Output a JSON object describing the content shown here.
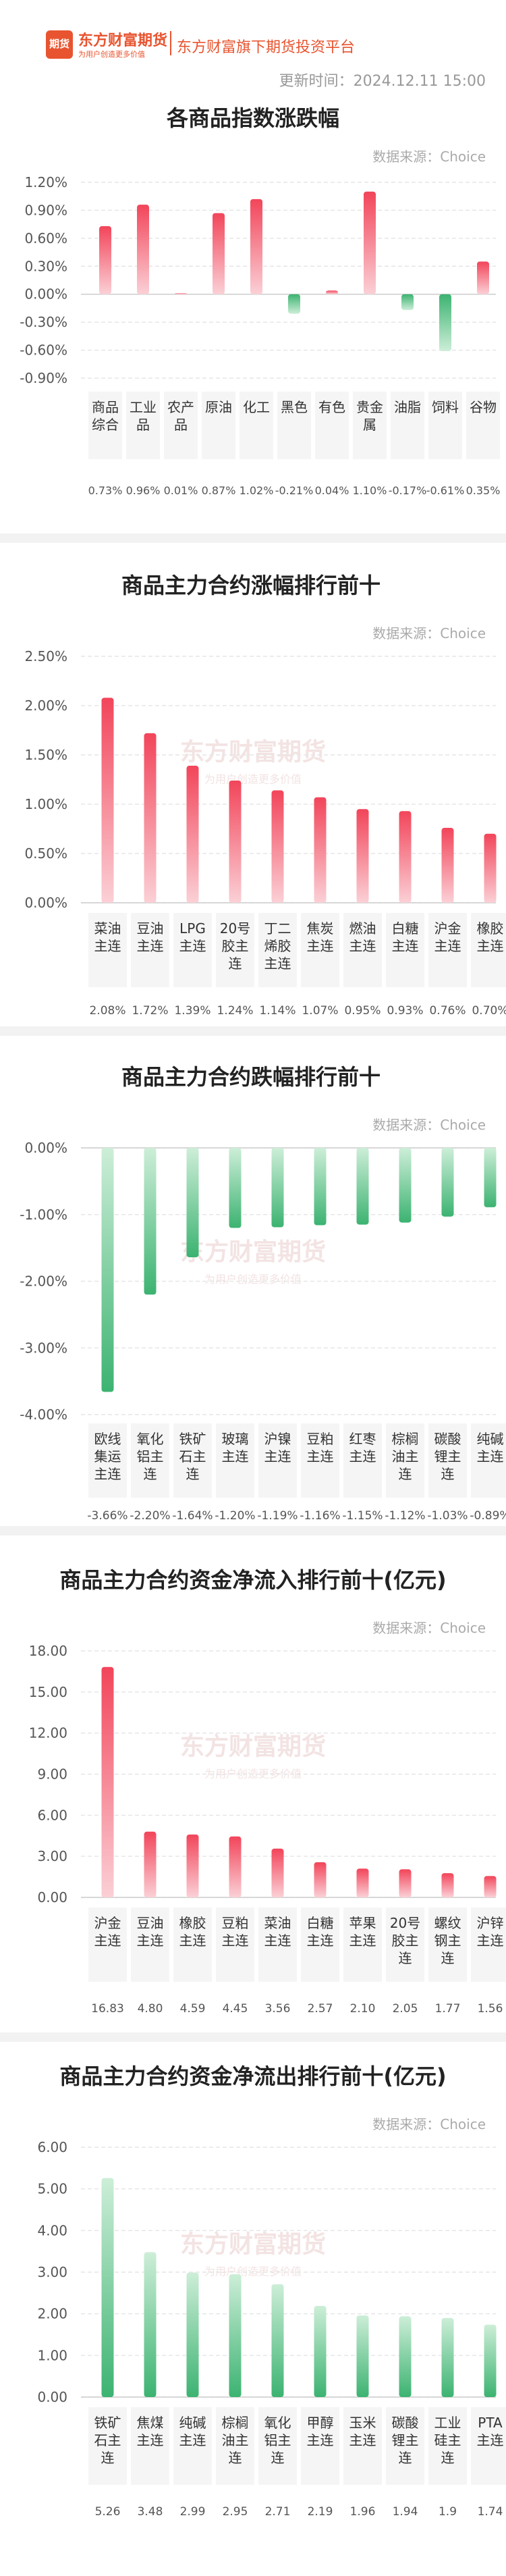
{
  "header": {
    "logo_icon_text": "期货",
    "logo_text": "东方财富期货",
    "logo_sub": "为用户创造更多价值",
    "tagline": "东方财富旗下期货投资平台",
    "updated": "更新时间：2024.12.11 15:00"
  },
  "watermark": {
    "main": "东方财富期货",
    "sub": "为用户创造更多价值"
  },
  "colors": {
    "up": "#f2455a",
    "down": "#3cb371",
    "grid": "#e6e6e6",
    "label_bg": "#f5f5f5"
  },
  "chart_data": [
    {
      "type": "bar",
      "title": "各商品指数涨跌幅",
      "source": "数据来源：Choice",
      "categories": [
        "商品综合",
        "工业品",
        "农产品",
        "原油",
        "化工",
        "黑色",
        "有色",
        "贵金属",
        "油脂",
        "饲料",
        "谷物"
      ],
      "category_lines": [
        [
          "商品",
          "综合"
        ],
        [
          "工业",
          "品"
        ],
        [
          "农产",
          "品"
        ],
        [
          "原油"
        ],
        [
          "化工"
        ],
        [
          "黑色"
        ],
        [
          "有色"
        ],
        [
          "贵金",
          "属"
        ],
        [
          "油脂"
        ],
        [
          "饲料"
        ],
        [
          "谷物"
        ]
      ],
      "values": [
        0.73,
        0.96,
        0.01,
        0.87,
        1.02,
        -0.21,
        0.04,
        1.1,
        -0.17,
        -0.61,
        0.35
      ],
      "value_labels": [
        "0.73%",
        "0.96%",
        "0.01%",
        "0.87%",
        "1.02%",
        "-0.21%",
        "0.04%",
        "1.10%",
        "-0.17%",
        "-0.61%",
        "0.35%"
      ],
      "yticks": [
        "1.20%",
        "0.90%",
        "0.60%",
        "0.30%",
        "0.00%",
        "-0.30%",
        "-0.60%",
        "-0.90%"
      ],
      "ylim": [
        -0.9,
        1.2
      ],
      "grid": true
    },
    {
      "type": "bar",
      "title": "商品主力合约涨幅排行前十",
      "source": "数据来源：Choice",
      "categories": [
        "菜油主连",
        "豆油主连",
        "LPG主连",
        "20号胶主连",
        "丁二烯胶主连",
        "焦炭主连",
        "燃油主连",
        "白糖主连",
        "沪金主连",
        "橡胶主连"
      ],
      "category_lines": [
        [
          "菜油",
          "主连"
        ],
        [
          "豆油",
          "主连"
        ],
        [
          "LPG",
          "主连"
        ],
        [
          "20号",
          "胶主",
          "连"
        ],
        [
          "丁二",
          "烯胶",
          "主连"
        ],
        [
          "焦炭",
          "主连"
        ],
        [
          "燃油",
          "主连"
        ],
        [
          "白糖",
          "主连"
        ],
        [
          "沪金",
          "主连"
        ],
        [
          "橡胶",
          "主连"
        ]
      ],
      "values": [
        2.08,
        1.72,
        1.39,
        1.24,
        1.14,
        1.07,
        0.95,
        0.93,
        0.76,
        0.7
      ],
      "value_labels": [
        "2.08%",
        "1.72%",
        "1.39%",
        "1.24%",
        "1.14%",
        "1.07%",
        "0.95%",
        "0.93%",
        "0.76%",
        "0.70%"
      ],
      "yticks": [
        "2.50%",
        "2.00%",
        "1.50%",
        "1.00%",
        "0.50%",
        "0.00%"
      ],
      "ylim": [
        0,
        2.5
      ],
      "grid": true
    },
    {
      "type": "bar",
      "title": "商品主力合约跌幅排行前十",
      "source": "数据来源：Choice",
      "categories": [
        "欧线集运主连",
        "氧化铝主连",
        "铁矿石主连",
        "玻璃主连",
        "沪镍主连",
        "豆粕主连",
        "红枣主连",
        "棕榈油主连",
        "碳酸锂主连",
        "纯碱主连"
      ],
      "category_lines": [
        [
          "欧线",
          "集运",
          "主连"
        ],
        [
          "氧化",
          "铝主",
          "连"
        ],
        [
          "铁矿",
          "石主",
          "连"
        ],
        [
          "玻璃",
          "主连"
        ],
        [
          "沪镍",
          "主连"
        ],
        [
          "豆粕",
          "主连"
        ],
        [
          "红枣",
          "主连"
        ],
        [
          "棕榈",
          "油主",
          "连"
        ],
        [
          "碳酸",
          "锂主",
          "连"
        ],
        [
          "纯碱",
          "主连"
        ]
      ],
      "values": [
        -3.66,
        -2.2,
        -1.64,
        -1.2,
        -1.19,
        -1.16,
        -1.15,
        -1.12,
        -1.03,
        -0.89
      ],
      "value_labels": [
        "-3.66%",
        "-2.20%",
        "-1.64%",
        "-1.20%",
        "-1.19%",
        "-1.16%",
        "-1.15%",
        "-1.12%",
        "-1.03%",
        "-0.89%"
      ],
      "yticks": [
        "0.00%",
        "-1.00%",
        "-2.00%",
        "-3.00%",
        "-4.00%"
      ],
      "ylim": [
        -4,
        0
      ],
      "grid": true
    },
    {
      "type": "bar",
      "title": "商品主力合约资金净流入排行前十(亿元)",
      "source": "数据来源：Choice",
      "categories": [
        "沪金主连",
        "豆油主连",
        "橡胶主连",
        "豆粕主连",
        "菜油主连",
        "白糖主连",
        "苹果主连",
        "20号胶主连",
        "螺纹钢主连",
        "沪锌主连"
      ],
      "category_lines": [
        [
          "沪金",
          "主连"
        ],
        [
          "豆油",
          "主连"
        ],
        [
          "橡胶",
          "主连"
        ],
        [
          "豆粕",
          "主连"
        ],
        [
          "菜油",
          "主连"
        ],
        [
          "白糖",
          "主连"
        ],
        [
          "苹果",
          "主连"
        ],
        [
          "20号",
          "胶主",
          "连"
        ],
        [
          "螺纹",
          "钢主",
          "连"
        ],
        [
          "沪锌",
          "主连"
        ]
      ],
      "values": [
        16.83,
        4.8,
        4.59,
        4.45,
        3.56,
        2.57,
        2.1,
        2.05,
        1.77,
        1.56
      ],
      "value_labels": [
        "16.83",
        "4.80",
        "4.59",
        "4.45",
        "3.56",
        "2.57",
        "2.10",
        "2.05",
        "1.77",
        "1.56"
      ],
      "yticks": [
        "18.00",
        "15.00",
        "12.00",
        "9.00",
        "6.00",
        "3.00",
        "0.00"
      ],
      "ylim": [
        0,
        18
      ],
      "grid": true
    },
    {
      "type": "bar",
      "title": "商品主力合约资金净流出排行前十(亿元)",
      "source": "数据来源：Choice",
      "categories": [
        "铁矿石主连",
        "焦煤主连",
        "纯碱主连",
        "棕榈油主连",
        "氧化铝主连",
        "甲醇主连",
        "玉米主连",
        "碳酸锂主连",
        "工业硅主连",
        "PTA主连"
      ],
      "category_lines": [
        [
          "铁矿",
          "石主",
          "连"
        ],
        [
          "焦煤",
          "主连"
        ],
        [
          "纯碱",
          "主连"
        ],
        [
          "棕榈",
          "油主",
          "连"
        ],
        [
          "氧化",
          "铝主",
          "连"
        ],
        [
          "甲醇",
          "主连"
        ],
        [
          "玉米",
          "主连"
        ],
        [
          "碳酸",
          "锂主",
          "连"
        ],
        [
          "工业",
          "硅主",
          "连"
        ],
        [
          "PTA",
          "主连"
        ]
      ],
      "values": [
        5.26,
        3.48,
        2.99,
        2.95,
        2.71,
        2.19,
        1.96,
        1.94,
        1.9,
        1.74
      ],
      "value_labels": [
        "5.26",
        "3.48",
        "2.99",
        "2.95",
        "2.71",
        "2.19",
        "1.96",
        "1.94",
        "1.9",
        "1.74"
      ],
      "yticks": [
        "6.00",
        "5.00",
        "4.00",
        "3.00",
        "2.00",
        "1.00",
        "0.00"
      ],
      "ylim": [
        0,
        6
      ],
      "grid": true
    }
  ]
}
